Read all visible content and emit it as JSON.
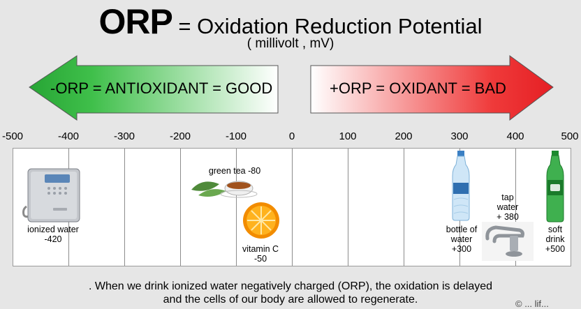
{
  "title": {
    "main": "ORP",
    "rest": " = Oxidation Reduction Potential",
    "unit": "( millivolt , mV)"
  },
  "arrows": {
    "left": {
      "label": "-ORP = ANTIOXIDANT = GOOD",
      "color": "#2ea83a"
    },
    "right": {
      "label": "+ORP = OXIDANT = BAD",
      "color": "#e8282a"
    }
  },
  "axis": {
    "min": -500,
    "max": 500,
    "ticks": [
      "-500",
      "-400",
      "-300",
      "-200",
      "-100",
      "0",
      "100",
      "200",
      "300",
      "400",
      "500"
    ]
  },
  "items": [
    {
      "label": [
        "ionized water",
        "-420"
      ],
      "value": -420,
      "icon": "water-ionizer-icon"
    },
    {
      "label": [
        "green tea -80"
      ],
      "value": -80,
      "icon": "green-tea-icon"
    },
    {
      "label": [
        "vitamin C",
        "-50"
      ],
      "value": -50,
      "icon": "orange-slice-icon"
    },
    {
      "label": [
        "bottle of",
        "water",
        "+300"
      ],
      "value": 300,
      "icon": "water-bottle-icon"
    },
    {
      "label": [
        "tap",
        "water",
        "+ 380"
      ],
      "value": 380,
      "icon": "faucet-icon"
    },
    {
      "label": [
        "soft",
        "drink",
        "+500"
      ],
      "value": 500,
      "icon": "soda-bottle-icon"
    }
  ],
  "footer": {
    "line1": ". When we drink ionized water negatively charged (ORP),  the oxidation is delayed",
    "line2": "and the cells of our body are allowed to regenerate."
  },
  "watermark": "© ... lif..."
}
